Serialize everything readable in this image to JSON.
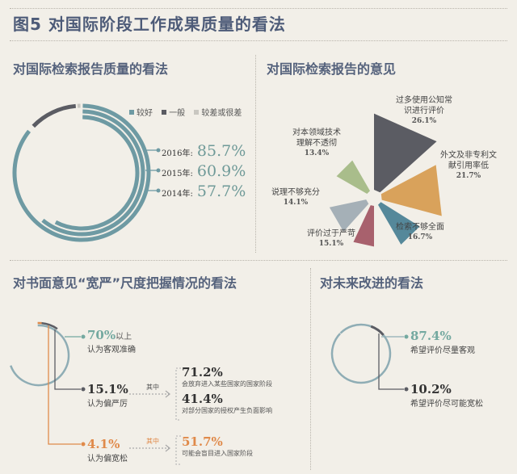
{
  "title": "图5  对国际阶段工作成果质量的看法",
  "colors": {
    "teal": "#6e9aa3",
    "dark": "#5b5c63",
    "lightgray": "#c9c7c1",
    "orange": "#d9a25b",
    "green": "#a9bd8b",
    "slate": "#a5b0b7",
    "rose": "#a8616d",
    "blueteal": "#55889a",
    "accent_orange": "#e08a4a",
    "accent_teal": "#74a9a0"
  },
  "chart_data": [
    {
      "type": "donut",
      "title": "对国际检索报告质量的看法",
      "legend": [
        "较好",
        "一般",
        "较差或很差"
      ],
      "legend_placement": "top-right",
      "series": [
        {
          "name": "2016年:",
          "value_label": "85.7%",
          "good": 85.7
        },
        {
          "name": "2015年:",
          "value_label": "60.9%",
          "good": 60.9
        },
        {
          "name": "2014年:",
          "value_label": "57.7%",
          "good": 57.7
        }
      ]
    },
    {
      "type": "pie",
      "subtype": "rose",
      "title": "对国际检索报告的意见",
      "slices": [
        {
          "label": "过多使用公知常识进行评价",
          "line1": "过多使用公知常",
          "line2": "识进行评价",
          "value": 26.1,
          "value_label": "26.1%"
        },
        {
          "label": "外文及非专利文献引用率低",
          "line1": "外文及非专利文",
          "line2": "献引用率低",
          "value": 21.7,
          "value_label": "21.7%"
        },
        {
          "label": "检索不够全面",
          "line1": "检索不够全面",
          "line2": "",
          "value": 16.7,
          "value_label": "16.7%"
        },
        {
          "label": "评价过于严苛",
          "line1": "评价过于严苛",
          "line2": "",
          "value": 15.1,
          "value_label": "15.1%"
        },
        {
          "label": "说理不够充分",
          "line1": "说理不够充分",
          "line2": "",
          "value": 14.1,
          "value_label": "14.1%"
        },
        {
          "label": "对本领域技术理解不透彻",
          "line1": "对本领域技术",
          "line2": "理解不透彻",
          "value": 13.4,
          "value_label": "13.4%"
        }
      ]
    },
    {
      "type": "donut",
      "title": "对书面意见“宽严”尺度把握情况的看法",
      "items": [
        {
          "value": 70,
          "value_label": "70%",
          "suffix": "以上",
          "desc": "认为客观准确"
        },
        {
          "value": 15.1,
          "value_label": "15.1%",
          "desc": "认为偏严厉",
          "among": "其中",
          "details": [
            {
              "value_label": "71.2%",
              "desc": "会放弃进入某些国家的国家阶段"
            },
            {
              "value_label": "41.4%",
              "desc": "对部分国家的授权产生负面影响"
            }
          ]
        },
        {
          "value": 4.1,
          "value_label": "4.1%",
          "desc": "认为偏宽松",
          "among": "其中",
          "details": [
            {
              "value_label": "51.7%",
              "desc": "可能会盲目进入国家阶段"
            }
          ]
        }
      ]
    },
    {
      "type": "donut",
      "title": "对未来改进的看法",
      "items": [
        {
          "value": 87.4,
          "value_label": "87.4%",
          "desc": "希望评价尽量客观"
        },
        {
          "value": 10.2,
          "value_label": "10.2%",
          "desc": "希望评价尽可能宽松"
        }
      ]
    }
  ]
}
